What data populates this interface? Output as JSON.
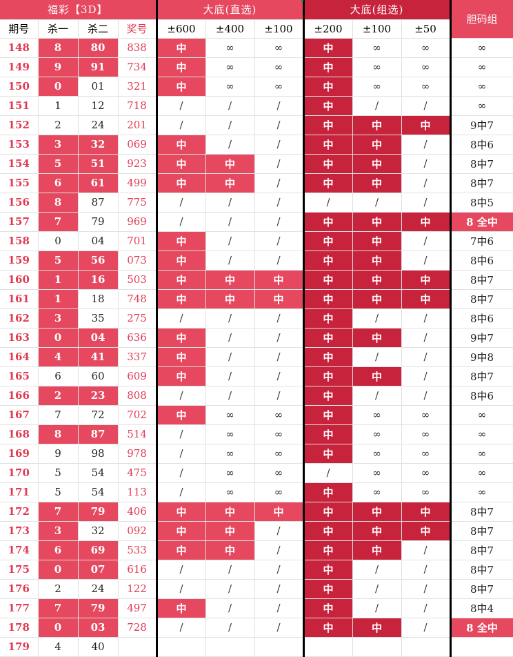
{
  "headers": {
    "group1": "福彩【3D】",
    "group2": "大底(直选)",
    "group3": "大底(组选)",
    "dan": "胆码组"
  },
  "subheaders": [
    "期号",
    "杀一",
    "杀二",
    "奖号",
    "±600",
    "±400",
    "±100",
    "±200",
    "±100",
    "±50"
  ],
  "rows": [
    {
      "issue": "148",
      "kill1": "8",
      "kill2": "80",
      "win": "838",
      "d1": "中",
      "d2": "∞",
      "d3": "∞",
      "g1": "中",
      "g2": "∞",
      "g3": "∞",
      "dan": "∞",
      "h1": true,
      "h2": true,
      "fd1": true,
      "fd2": false,
      "fd3": false,
      "fg1": true,
      "fg2": false,
      "fg3": false,
      "dfull": false
    },
    {
      "issue": "149",
      "kill1": "9",
      "kill2": "91",
      "win": "734",
      "d1": "中",
      "d2": "∞",
      "d3": "∞",
      "g1": "中",
      "g2": "∞",
      "g3": "∞",
      "dan": "∞",
      "h1": true,
      "h2": true,
      "fd1": true,
      "fd2": false,
      "fd3": false,
      "fg1": true,
      "fg2": false,
      "fg3": false,
      "dfull": false
    },
    {
      "issue": "150",
      "kill1": "0",
      "kill2": "01",
      "win": "321",
      "d1": "中",
      "d2": "∞",
      "d3": "∞",
      "g1": "中",
      "g2": "∞",
      "g3": "∞",
      "dan": "∞",
      "h1": true,
      "h2": false,
      "fd1": true,
      "fd2": false,
      "fd3": false,
      "fg1": true,
      "fg2": false,
      "fg3": false,
      "dfull": false
    },
    {
      "issue": "151",
      "kill1": "1",
      "kill2": "12",
      "win": "718",
      "d1": "/",
      "d2": "/",
      "d3": "/",
      "g1": "中",
      "g2": "/",
      "g3": "/",
      "dan": "∞",
      "h1": false,
      "h2": false,
      "fd1": false,
      "fd2": false,
      "fd3": false,
      "fg1": true,
      "fg2": false,
      "fg3": false,
      "dfull": false
    },
    {
      "issue": "152",
      "kill1": "2",
      "kill2": "24",
      "win": "201",
      "d1": "/",
      "d2": "/",
      "d3": "/",
      "g1": "中",
      "g2": "中",
      "g3": "中",
      "dan": "9中7",
      "h1": false,
      "h2": false,
      "fd1": false,
      "fd2": false,
      "fd3": false,
      "fg1": true,
      "fg2": true,
      "fg3": true,
      "dfull": false
    },
    {
      "issue": "153",
      "kill1": "3",
      "kill2": "32",
      "win": "069",
      "d1": "中",
      "d2": "/",
      "d3": "/",
      "g1": "中",
      "g2": "中",
      "g3": "/",
      "dan": "8中6",
      "h1": true,
      "h2": true,
      "fd1": true,
      "fd2": false,
      "fd3": false,
      "fg1": true,
      "fg2": true,
      "fg3": false,
      "dfull": false
    },
    {
      "issue": "154",
      "kill1": "5",
      "kill2": "51",
      "win": "923",
      "d1": "中",
      "d2": "中",
      "d3": "/",
      "g1": "中",
      "g2": "中",
      "g3": "/",
      "dan": "8中7",
      "h1": true,
      "h2": true,
      "fd1": true,
      "fd2": true,
      "fd3": false,
      "fg1": true,
      "fg2": true,
      "fg3": false,
      "dfull": false
    },
    {
      "issue": "155",
      "kill1": "6",
      "kill2": "61",
      "win": "499",
      "d1": "中",
      "d2": "中",
      "d3": "/",
      "g1": "中",
      "g2": "中",
      "g3": "/",
      "dan": "8中7",
      "h1": true,
      "h2": true,
      "fd1": true,
      "fd2": true,
      "fd3": false,
      "fg1": true,
      "fg2": true,
      "fg3": false,
      "dfull": false
    },
    {
      "issue": "156",
      "kill1": "8",
      "kill2": "87",
      "win": "775",
      "d1": "/",
      "d2": "/",
      "d3": "/",
      "g1": "/",
      "g2": "/",
      "g3": "/",
      "dan": "8中5",
      "h1": true,
      "h2": false,
      "fd1": false,
      "fd2": false,
      "fd3": false,
      "fg1": false,
      "fg2": false,
      "fg3": false,
      "dfull": false
    },
    {
      "issue": "157",
      "kill1": "7",
      "kill2": "79",
      "win": "969",
      "d1": "/",
      "d2": "/",
      "d3": "/",
      "g1": "中",
      "g2": "中",
      "g3": "中",
      "dan": "8 全中",
      "h1": true,
      "h2": false,
      "fd1": false,
      "fd2": false,
      "fd3": false,
      "fg1": true,
      "fg2": true,
      "fg3": true,
      "dfull": true
    },
    {
      "issue": "158",
      "kill1": "0",
      "kill2": "04",
      "win": "701",
      "d1": "中",
      "d2": "/",
      "d3": "/",
      "g1": "中",
      "g2": "中",
      "g3": "/",
      "dan": "7中6",
      "h1": false,
      "h2": false,
      "fd1": true,
      "fd2": false,
      "fd3": false,
      "fg1": true,
      "fg2": true,
      "fg3": false,
      "dfull": false
    },
    {
      "issue": "159",
      "kill1": "5",
      "kill2": "56",
      "win": "073",
      "d1": "中",
      "d2": "/",
      "d3": "/",
      "g1": "中",
      "g2": "中",
      "g3": "/",
      "dan": "8中6",
      "h1": true,
      "h2": true,
      "fd1": true,
      "fd2": false,
      "fd3": false,
      "fg1": true,
      "fg2": true,
      "fg3": false,
      "dfull": false
    },
    {
      "issue": "160",
      "kill1": "1",
      "kill2": "16",
      "win": "503",
      "d1": "中",
      "d2": "中",
      "d3": "中",
      "g1": "中",
      "g2": "中",
      "g3": "中",
      "dan": "8中7",
      "h1": true,
      "h2": true,
      "fd1": true,
      "fd2": true,
      "fd3": true,
      "fg1": true,
      "fg2": true,
      "fg3": true,
      "dfull": false
    },
    {
      "issue": "161",
      "kill1": "1",
      "kill2": "18",
      "win": "748",
      "d1": "中",
      "d2": "中",
      "d3": "中",
      "g1": "中",
      "g2": "中",
      "g3": "中",
      "dan": "8中7",
      "h1": true,
      "h2": false,
      "fd1": true,
      "fd2": true,
      "fd3": true,
      "fg1": true,
      "fg2": true,
      "fg3": true,
      "dfull": false
    },
    {
      "issue": "162",
      "kill1": "3",
      "kill2": "35",
      "win": "275",
      "d1": "/",
      "d2": "/",
      "d3": "/",
      "g1": "中",
      "g2": "/",
      "g3": "/",
      "dan": "8中6",
      "h1": true,
      "h2": false,
      "fd1": false,
      "fd2": false,
      "fd3": false,
      "fg1": true,
      "fg2": false,
      "fg3": false,
      "dfull": false
    },
    {
      "issue": "163",
      "kill1": "0",
      "kill2": "04",
      "win": "636",
      "d1": "中",
      "d2": "/",
      "d3": "/",
      "g1": "中",
      "g2": "中",
      "g3": "/",
      "dan": "9中7",
      "h1": true,
      "h2": true,
      "fd1": true,
      "fd2": false,
      "fd3": false,
      "fg1": true,
      "fg2": true,
      "fg3": false,
      "dfull": false
    },
    {
      "issue": "164",
      "kill1": "4",
      "kill2": "41",
      "win": "337",
      "d1": "中",
      "d2": "/",
      "d3": "/",
      "g1": "中",
      "g2": "/",
      "g3": "/",
      "dan": "9中8",
      "h1": true,
      "h2": true,
      "fd1": true,
      "fd2": false,
      "fd3": false,
      "fg1": true,
      "fg2": false,
      "fg3": false,
      "dfull": false
    },
    {
      "issue": "165",
      "kill1": "6",
      "kill2": "60",
      "win": "609",
      "d1": "中",
      "d2": "/",
      "d3": "/",
      "g1": "中",
      "g2": "中",
      "g3": "/",
      "dan": "8中7",
      "h1": false,
      "h2": false,
      "fd1": true,
      "fd2": false,
      "fd3": false,
      "fg1": true,
      "fg2": true,
      "fg3": false,
      "dfull": false
    },
    {
      "issue": "166",
      "kill1": "2",
      "kill2": "23",
      "win": "808",
      "d1": "/",
      "d2": "/",
      "d3": "/",
      "g1": "中",
      "g2": "/",
      "g3": "/",
      "dan": "8中6",
      "h1": true,
      "h2": true,
      "fd1": false,
      "fd2": false,
      "fd3": false,
      "fg1": true,
      "fg2": false,
      "fg3": false,
      "dfull": false
    },
    {
      "issue": "167",
      "kill1": "7",
      "kill2": "72",
      "win": "702",
      "d1": "中",
      "d2": "∞",
      "d3": "∞",
      "g1": "中",
      "g2": "∞",
      "g3": "∞",
      "dan": "∞",
      "h1": false,
      "h2": false,
      "fd1": true,
      "fd2": false,
      "fd3": false,
      "fg1": true,
      "fg2": false,
      "fg3": false,
      "dfull": false
    },
    {
      "issue": "168",
      "kill1": "8",
      "kill2": "87",
      "win": "514",
      "d1": "/",
      "d2": "∞",
      "d3": "∞",
      "g1": "中",
      "g2": "∞",
      "g3": "∞",
      "dan": "∞",
      "h1": true,
      "h2": true,
      "fd1": false,
      "fd2": false,
      "fd3": false,
      "fg1": true,
      "fg2": false,
      "fg3": false,
      "dfull": false
    },
    {
      "issue": "169",
      "kill1": "9",
      "kill2": "98",
      "win": "978",
      "d1": "/",
      "d2": "∞",
      "d3": "∞",
      "g1": "中",
      "g2": "∞",
      "g3": "∞",
      "dan": "∞",
      "h1": false,
      "h2": false,
      "fd1": false,
      "fd2": false,
      "fd3": false,
      "fg1": true,
      "fg2": false,
      "fg3": false,
      "dfull": false
    },
    {
      "issue": "170",
      "kill1": "5",
      "kill2": "54",
      "win": "475",
      "d1": "/",
      "d2": "∞",
      "d3": "∞",
      "g1": "/",
      "g2": "∞",
      "g3": "∞",
      "dan": "∞",
      "h1": false,
      "h2": false,
      "fd1": false,
      "fd2": false,
      "fd3": false,
      "fg1": false,
      "fg2": false,
      "fg3": false,
      "dfull": false
    },
    {
      "issue": "171",
      "kill1": "5",
      "kill2": "54",
      "win": "113",
      "d1": "/",
      "d2": "∞",
      "d3": "∞",
      "g1": "中",
      "g2": "∞",
      "g3": "∞",
      "dan": "∞",
      "h1": false,
      "h2": false,
      "fd1": false,
      "fd2": false,
      "fd3": false,
      "fg1": true,
      "fg2": false,
      "fg3": false,
      "dfull": false
    },
    {
      "issue": "172",
      "kill1": "7",
      "kill2": "79",
      "win": "406",
      "d1": "中",
      "d2": "中",
      "d3": "中",
      "g1": "中",
      "g2": "中",
      "g3": "中",
      "dan": "8中7",
      "h1": true,
      "h2": true,
      "fd1": true,
      "fd2": true,
      "fd3": true,
      "fg1": true,
      "fg2": true,
      "fg3": true,
      "dfull": false
    },
    {
      "issue": "173",
      "kill1": "3",
      "kill2": "32",
      "win": "092",
      "d1": "中",
      "d2": "中",
      "d3": "/",
      "g1": "中",
      "g2": "中",
      "g3": "中",
      "dan": "8中7",
      "h1": true,
      "h2": false,
      "fd1": true,
      "fd2": true,
      "fd3": false,
      "fg1": true,
      "fg2": true,
      "fg3": true,
      "dfull": false
    },
    {
      "issue": "174",
      "kill1": "6",
      "kill2": "69",
      "win": "533",
      "d1": "中",
      "d2": "中",
      "d3": "/",
      "g1": "中",
      "g2": "中",
      "g3": "/",
      "dan": "8中7",
      "h1": true,
      "h2": true,
      "fd1": true,
      "fd2": true,
      "fd3": false,
      "fg1": true,
      "fg2": true,
      "fg3": false,
      "dfull": false
    },
    {
      "issue": "175",
      "kill1": "0",
      "kill2": "07",
      "win": "616",
      "d1": "/",
      "d2": "/",
      "d3": "/",
      "g1": "中",
      "g2": "/",
      "g3": "/",
      "dan": "8中7",
      "h1": true,
      "h2": true,
      "fd1": false,
      "fd2": false,
      "fd3": false,
      "fg1": true,
      "fg2": false,
      "fg3": false,
      "dfull": false
    },
    {
      "issue": "176",
      "kill1": "2",
      "kill2": "24",
      "win": "122",
      "d1": "/",
      "d2": "/",
      "d3": "/",
      "g1": "中",
      "g2": "/",
      "g3": "/",
      "dan": "8中7",
      "h1": false,
      "h2": false,
      "fd1": false,
      "fd2": false,
      "fd3": false,
      "fg1": true,
      "fg2": false,
      "fg3": false,
      "dfull": false
    },
    {
      "issue": "177",
      "kill1": "7",
      "kill2": "79",
      "win": "497",
      "d1": "中",
      "d2": "/",
      "d3": "/",
      "g1": "中",
      "g2": "/",
      "g3": "/",
      "dan": "8中4",
      "h1": true,
      "h2": true,
      "fd1": true,
      "fd2": false,
      "fd3": false,
      "fg1": true,
      "fg2": false,
      "fg3": false,
      "dfull": false
    },
    {
      "issue": "178",
      "kill1": "0",
      "kill2": "03",
      "win": "728",
      "d1": "/",
      "d2": "/",
      "d3": "/",
      "g1": "中",
      "g2": "中",
      "g3": "/",
      "dan": "8 全中",
      "h1": true,
      "h2": true,
      "fd1": false,
      "fd2": false,
      "fd3": false,
      "fg1": true,
      "fg2": true,
      "fg3": false,
      "dfull": true
    },
    {
      "issue": "179",
      "kill1": "4",
      "kill2": "40",
      "win": "",
      "d1": "",
      "d2": "",
      "d3": "",
      "g1": "",
      "g2": "",
      "g3": "",
      "dan": "",
      "h1": false,
      "h2": false,
      "fd1": false,
      "fd2": false,
      "fd3": false,
      "fg1": false,
      "fg2": false,
      "fg3": false,
      "dfull": false
    }
  ],
  "colors": {
    "pink": "#e5485f",
    "red": "#c8233c",
    "issue_text": "#e03a52",
    "separator": "#000000",
    "grid": "#e1e1e1"
  }
}
